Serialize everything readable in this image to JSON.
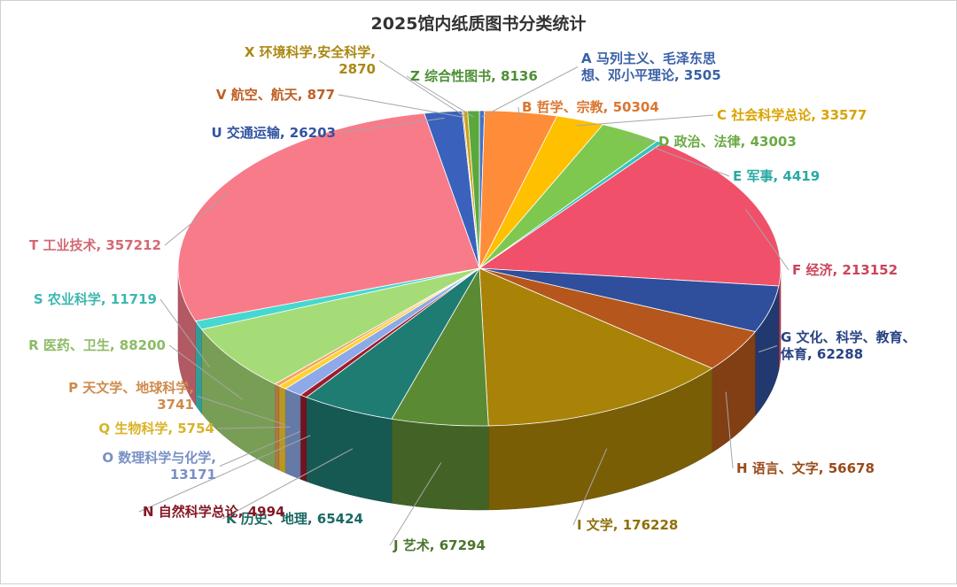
{
  "chart_data": {
    "type": "pie",
    "title": "2025馆内纸质图书分类统计",
    "three_d": true,
    "legend": "none",
    "slices": [
      {
        "code": "A",
        "name": "马列主义、毛泽东思想、邓小平理论",
        "value": 3505,
        "color": "#4472c4",
        "label_lines": [
          "A 马列主义、毛泽东思",
          "想、邓小平理论, 3505"
        ]
      },
      {
        "code": "B",
        "name": "哲学、宗教",
        "value": 50304,
        "color": "#ff8c38",
        "label_lines": [
          "B 哲学、宗教, 50304"
        ]
      },
      {
        "code": "C",
        "name": "社会科学总论",
        "value": 33577,
        "color": "#ffc000",
        "label_lines": [
          "C 社会科学总论, 33577"
        ]
      },
      {
        "code": "D",
        "name": "政治、法律",
        "value": 43003,
        "color": "#7ec850",
        "label_lines": [
          "D 政治、法律, 43003"
        ]
      },
      {
        "code": "E",
        "name": "军事",
        "value": 4419,
        "color": "#31c7c0",
        "label_lines": [
          "E 军事, 4419"
        ]
      },
      {
        "code": "F",
        "name": "经济",
        "value": 213152,
        "color": "#f0506a",
        "label_lines": [
          "F 经济, 213152"
        ]
      },
      {
        "code": "G",
        "name": "文化、科学、教育、体育",
        "value": 62288,
        "color": "#2f4f9c",
        "label_lines": [
          "G 文化、科学、教育、",
          "体育, 62288"
        ]
      },
      {
        "code": "H",
        "name": "语言、文字",
        "value": 56678,
        "color": "#b5571c",
        "label_lines": [
          "H 语言、文字, 56678"
        ]
      },
      {
        "code": "I",
        "name": "文学",
        "value": 176228,
        "color": "#a88308",
        "label_lines": [
          "I 文学, 176228"
        ]
      },
      {
        "code": "J",
        "name": "艺术",
        "value": 67294,
        "color": "#5b8a34",
        "label_lines": [
          "J 艺术, 67294"
        ]
      },
      {
        "code": "K",
        "name": "历史、地理",
        "value": 65424,
        "color": "#1f7c73",
        "label_lines": [
          "K 历史、地理, 65424"
        ]
      },
      {
        "code": "N",
        "name": "自然科学总论",
        "value": 4994,
        "color": "#9c1c2c",
        "label_lines": [
          "N 自然科学总论, 4994"
        ]
      },
      {
        "code": "O",
        "name": "数理科学与化学",
        "value": 13171,
        "color": "#8ea9e8",
        "label_lines": [
          "O 数理科学与化学,",
          "13171"
        ]
      },
      {
        "code": "Q",
        "name": "生物科学",
        "value": 5754,
        "color": "#ffd230",
        "label_lines": [
          "Q 生物科学, 5754"
        ]
      },
      {
        "code": "P",
        "name": "天文学、地球科学",
        "value": 3741,
        "color": "#f5a25a",
        "label_lines": [
          "P 天文学、地球科学,",
          "3741"
        ]
      },
      {
        "code": "R",
        "name": "医药、卫生",
        "value": 88200,
        "color": "#a6dc78",
        "label_lines": [
          "R 医药、卫生, 88200"
        ]
      },
      {
        "code": "S",
        "name": "农业科学",
        "value": 11719,
        "color": "#46d8d0",
        "label_lines": [
          "S 农业科学, 11719"
        ]
      },
      {
        "code": "T",
        "name": "工业技术",
        "value": 357212,
        "color": "#f87b8a",
        "label_lines": [
          "T 工业技术, 357212"
        ]
      },
      {
        "code": "U",
        "name": "交通运输",
        "value": 26203,
        "color": "#3a62bd",
        "label_lines": [
          "U 交通运输, 26203"
        ]
      },
      {
        "code": "V",
        "name": "航空、航天",
        "value": 877,
        "color": "#e0702a",
        "label_lines": [
          "V 航空、航天, 877"
        ]
      },
      {
        "code": "X",
        "name": "环境科学,安全科学",
        "value": 2870,
        "color": "#c9a016",
        "label_lines": [
          "X 环境科学,安全科学,",
          "2870"
        ]
      },
      {
        "code": "Z",
        "name": "综合性图书",
        "value": 8136,
        "color": "#5aa83c",
        "label_lines": [
          "Z 综合性图书, 8136"
        ]
      }
    ]
  }
}
